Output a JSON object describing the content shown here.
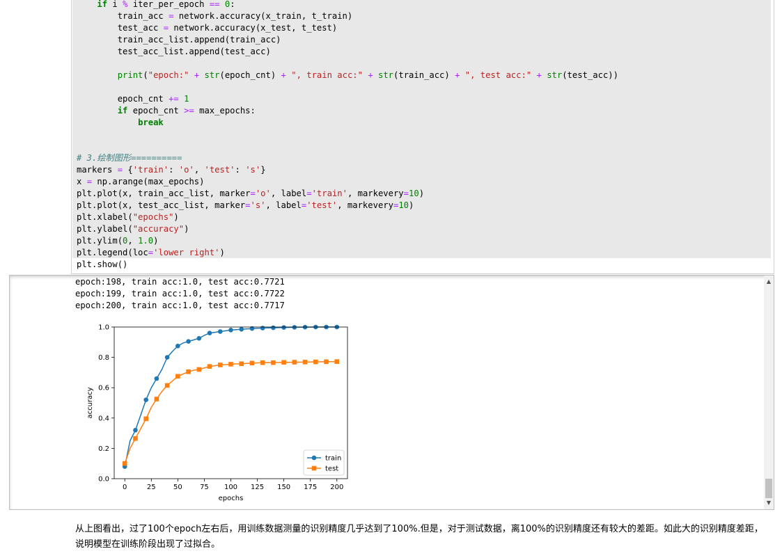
{
  "code": {
    "line1": [
      "    ",
      "if",
      " i ",
      "%",
      " iter_per_epoch ",
      "==",
      " ",
      "0",
      ":"
    ],
    "line2": [
      "        train_acc ",
      "=",
      " network.accuracy(x_train, t_train)"
    ],
    "line3": [
      "        test_acc ",
      "=",
      " network.accuracy(x_test, t_test)"
    ],
    "line4": [
      "        train_acc_list.append(train_acc)"
    ],
    "line5": [
      "        test_acc_list.append(test_acc)"
    ],
    "line6": [
      ""
    ],
    "line7": [
      "        ",
      "print",
      "(",
      "\"epoch:\"",
      " ",
      "+",
      " ",
      "str",
      "(epoch_cnt) ",
      "+",
      " ",
      "\", train acc:\"",
      " ",
      "+",
      " ",
      "str",
      "(train_acc) ",
      "+",
      " ",
      "\", test acc:\"",
      " ",
      "+",
      " ",
      "str",
      "(test_acc))"
    ],
    "line8": [
      ""
    ],
    "line9": [
      "        epoch_cnt ",
      "+=",
      " ",
      "1"
    ],
    "line10": [
      "        ",
      "if",
      " epoch_cnt ",
      ">=",
      " max_epochs:"
    ],
    "line11": [
      "            ",
      "break"
    ],
    "line12": [
      ""
    ],
    "line13": [
      ""
    ],
    "line14": [
      "# 3.绘制图形",
      "=========="
    ],
    "line15": [
      "markers ",
      "=",
      " {",
      "'train'",
      ": ",
      "'o'",
      ", ",
      "'test'",
      ": ",
      "'s'",
      "}"
    ],
    "line16": [
      "x ",
      "=",
      " np.arange(max_epochs)"
    ],
    "line17": [
      "plt.plot(x, train_acc_list, marker",
      "=",
      "'o'",
      ", label",
      "=",
      "'train'",
      ", markevery",
      "=",
      "10",
      ")"
    ],
    "line18": [
      "plt.plot(x, test_acc_list, marker",
      "=",
      "'s'",
      ", label",
      "=",
      "'test'",
      ", markevery",
      "=",
      "10",
      ")"
    ],
    "line19": [
      "plt.xlabel(",
      "\"epochs\"",
      ")"
    ],
    "line20": [
      "plt.ylabel(",
      "\"accuracy\"",
      ")"
    ],
    "line21": [
      "plt.ylim(",
      "0",
      ", ",
      "1.0",
      ")"
    ],
    "line22": [
      "plt.legend(loc",
      "=",
      "'lower right'",
      ")"
    ],
    "line23": [
      "plt.show()"
    ]
  },
  "output": {
    "lines": [
      "epoch:198, train acc:1.0, test acc:0.7721",
      "epoch:199, train acc:1.0, test acc:0.7722",
      "epoch:200, train acc:1.0, test acc:0.7717"
    ],
    "scroll_up": "▲",
    "scroll_down": "▼"
  },
  "chart_data": {
    "type": "line",
    "xlabel": "epochs",
    "ylabel": "accuracy",
    "xlim": [
      -10,
      210
    ],
    "ylim": [
      0,
      1.0
    ],
    "xticks": [
      "0",
      "25",
      "50",
      "75",
      "100",
      "125",
      "150",
      "175",
      "200"
    ],
    "yticks": [
      "0.0",
      "0.2",
      "0.4",
      "0.6",
      "0.8",
      "1.0"
    ],
    "legend_position": "lower right",
    "series": [
      {
        "name": "train",
        "color": "#1f77b4",
        "marker": "o",
        "x": [
          0,
          5,
          10,
          15,
          20,
          25,
          30,
          35,
          40,
          45,
          50,
          55,
          60,
          65,
          70,
          75,
          80,
          85,
          90,
          95,
          100,
          110,
          120,
          130,
          140,
          150,
          160,
          170,
          180,
          190,
          200
        ],
        "values": [
          0.08,
          0.25,
          0.32,
          0.42,
          0.52,
          0.6,
          0.66,
          0.72,
          0.8,
          0.84,
          0.875,
          0.895,
          0.905,
          0.915,
          0.925,
          0.945,
          0.96,
          0.965,
          0.97,
          0.975,
          0.98,
          0.985,
          0.99,
          0.993,
          0.995,
          0.997,
          0.998,
          0.999,
          1.0,
          1.0,
          1.0
        ],
        "marker_x": [
          0,
          10,
          20,
          30,
          40,
          50,
          60,
          70,
          80,
          90,
          100,
          110,
          120,
          130,
          140,
          150,
          160,
          170,
          180,
          190,
          200
        ],
        "marker_values": [
          0.08,
          0.32,
          0.52,
          0.66,
          0.8,
          0.875,
          0.905,
          0.925,
          0.96,
          0.97,
          0.98,
          0.985,
          0.99,
          0.993,
          0.995,
          0.997,
          0.998,
          0.999,
          1.0,
          1.0,
          1.0
        ]
      },
      {
        "name": "test",
        "color": "#ff7f0e",
        "marker": "s",
        "x": [
          0,
          5,
          10,
          15,
          20,
          25,
          30,
          35,
          40,
          45,
          50,
          55,
          60,
          65,
          70,
          75,
          80,
          85,
          90,
          95,
          100,
          110,
          120,
          130,
          140,
          150,
          160,
          170,
          180,
          190,
          200
        ],
        "values": [
          0.1,
          0.2,
          0.265,
          0.33,
          0.395,
          0.47,
          0.525,
          0.575,
          0.615,
          0.645,
          0.675,
          0.69,
          0.705,
          0.715,
          0.72,
          0.73,
          0.74,
          0.745,
          0.75,
          0.752,
          0.755,
          0.758,
          0.762,
          0.765,
          0.765,
          0.767,
          0.768,
          0.769,
          0.77,
          0.771,
          0.772
        ],
        "marker_x": [
          0,
          10,
          20,
          30,
          40,
          50,
          60,
          70,
          80,
          90,
          100,
          110,
          120,
          130,
          140,
          150,
          160,
          170,
          180,
          190,
          200
        ],
        "marker_values": [
          0.1,
          0.265,
          0.395,
          0.525,
          0.615,
          0.675,
          0.705,
          0.72,
          0.74,
          0.75,
          0.755,
          0.758,
          0.762,
          0.765,
          0.765,
          0.767,
          0.768,
          0.769,
          0.77,
          0.771,
          0.772
        ]
      }
    ]
  },
  "markdown": {
    "text": "从上图看出，过了100个epoch左右后，用训练数据测量的识别精度几乎达到了100%.但是，对于测试数据，离100%的识别精度还有较大的差距。如此大的识别精度差距，说明模型在训练阶段出现了过拟合。"
  }
}
